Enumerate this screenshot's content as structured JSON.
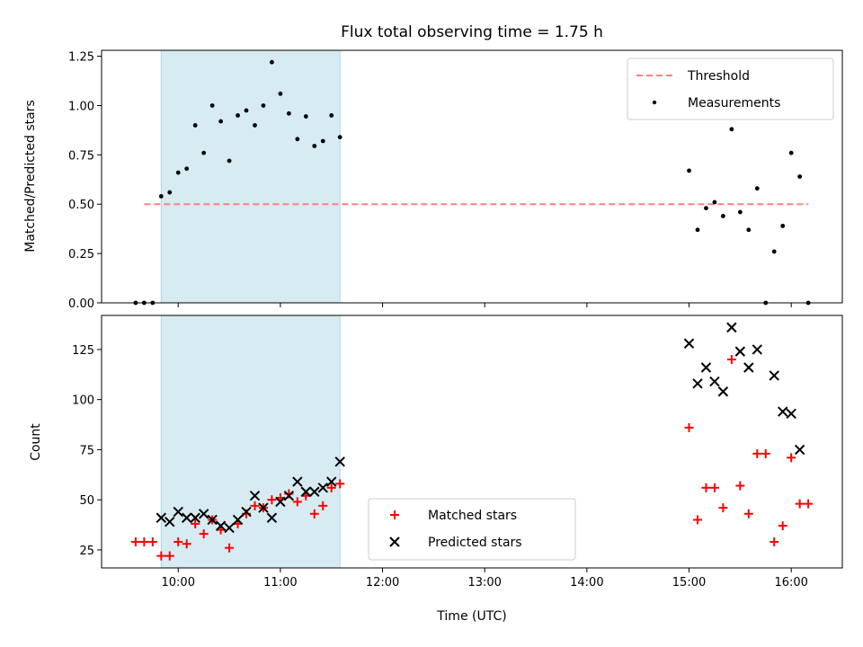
{
  "chart_data": {
    "type": "scatter",
    "title": "Flux total observing time = 1.75 h",
    "xlabel": "Time (UTC)",
    "x_ticks": [
      "10:00",
      "11:00",
      "12:00",
      "13:00",
      "14:00",
      "15:00",
      "16:00"
    ],
    "xlim": [
      "09:15",
      "16:30"
    ],
    "shaded_interval": [
      "09:50",
      "11:35"
    ],
    "colors": {
      "shade": "#add8e6",
      "threshold": "#ff7f7f",
      "measurements": "#000000",
      "matched": "#ff0000",
      "predicted": "#000000"
    },
    "panels": [
      {
        "ylabel": "Matched/Predicted stars",
        "ylim": [
          0,
          1.28
        ],
        "y_ticks": [
          "0.00",
          "0.25",
          "0.50",
          "0.75",
          "1.00",
          "1.25"
        ],
        "legend_position": "upper right",
        "threshold": {
          "name": "Threshold",
          "value": 0.5,
          "x_start": "09:40",
          "x_end": "16:10"
        },
        "series": [
          {
            "name": "Measurements",
            "marker": "dot",
            "x": [
              "09:40",
              "09:45",
              "09:50",
              "09:55",
              "10:00",
              "10:05",
              "10:10",
              "10:15",
              "10:20",
              "10:25",
              "10:30",
              "10:35",
              "10:40",
              "10:45",
              "10:50",
              "10:55",
              "11:00",
              "11:05",
              "11:10",
              "11:15",
              "11:20",
              "11:25",
              "11:30",
              "11:35",
              "09:35",
              "15:00",
              "15:05",
              "15:10",
              "15:15",
              "15:20",
              "15:25",
              "15:30",
              "15:35",
              "15:40",
              "15:45",
              "15:50",
              "15:55",
              "16:00",
              "16:05",
              "16:10"
            ],
            "y": [
              0.0,
              0.0,
              0.54,
              0.56,
              0.66,
              0.68,
              0.9,
              0.76,
              1.0,
              0.92,
              0.72,
              0.95,
              0.975,
              0.9,
              1.0,
              1.22,
              1.06,
              0.96,
              0.83,
              0.945,
              0.795,
              0.82,
              0.95,
              0.84,
              0.0,
              0.67,
              0.37,
              0.48,
              0.51,
              0.44,
              0.88,
              0.46,
              0.37,
              0.58,
              0.0,
              0.26,
              0.39,
              0.76,
              0.64,
              0.0
            ]
          }
        ]
      },
      {
        "ylabel": "Count",
        "ylim": [
          16,
          142
        ],
        "y_ticks": [
          "25",
          "50",
          "75",
          "100",
          "125"
        ],
        "legend_position": "lower center",
        "series": [
          {
            "name": "Matched stars",
            "marker": "plus",
            "x": [
              "09:35",
              "09:40",
              "09:45",
              "09:50",
              "09:55",
              "10:00",
              "10:05",
              "10:10",
              "10:15",
              "10:20",
              "10:25",
              "10:30",
              "10:35",
              "10:40",
              "10:45",
              "10:50",
              "10:55",
              "11:00",
              "11:05",
              "11:10",
              "11:15",
              "11:20",
              "11:25",
              "11:30",
              "11:35",
              "15:00",
              "15:05",
              "15:10",
              "15:15",
              "15:20",
              "15:25",
              "15:30",
              "15:35",
              "15:40",
              "15:45",
              "15:50",
              "15:55",
              "16:00",
              "16:05",
              "16:10"
            ],
            "y": [
              29,
              29,
              29,
              22,
              22,
              29,
              28,
              38,
              33,
              40,
              35,
              26,
              38,
              43,
              47,
              46,
              50,
              51,
              53,
              49,
              52,
              43,
              47,
              56,
              58,
              86,
              40,
              56,
              56,
              46,
              120,
              57,
              43,
              73,
              73,
              29,
              37,
              71,
              48,
              48
            ]
          },
          {
            "name": "Predicted stars",
            "marker": "x",
            "x": [
              "09:50",
              "09:55",
              "10:00",
              "10:05",
              "10:10",
              "10:15",
              "10:20",
              "10:25",
              "10:30",
              "10:35",
              "10:40",
              "10:45",
              "10:50",
              "10:55",
              "11:00",
              "11:05",
              "11:10",
              "11:15",
              "11:20",
              "11:25",
              "11:30",
              "11:35",
              "15:00",
              "15:05",
              "15:10",
              "15:15",
              "15:20",
              "15:25",
              "15:30",
              "15:35",
              "15:40",
              "15:50",
              "15:55",
              "16:00",
              "16:05"
            ],
            "y": [
              41,
              39,
              44,
              41,
              41,
              43,
              40,
              37,
              36,
              40,
              44,
              52,
              46,
              41,
              49,
              52,
              59,
              54,
              54,
              56,
              59,
              69,
              128,
              108,
              116,
              109,
              104,
              136,
              124,
              116,
              125,
              112,
              94,
              93,
              75
            ]
          }
        ]
      }
    ]
  }
}
